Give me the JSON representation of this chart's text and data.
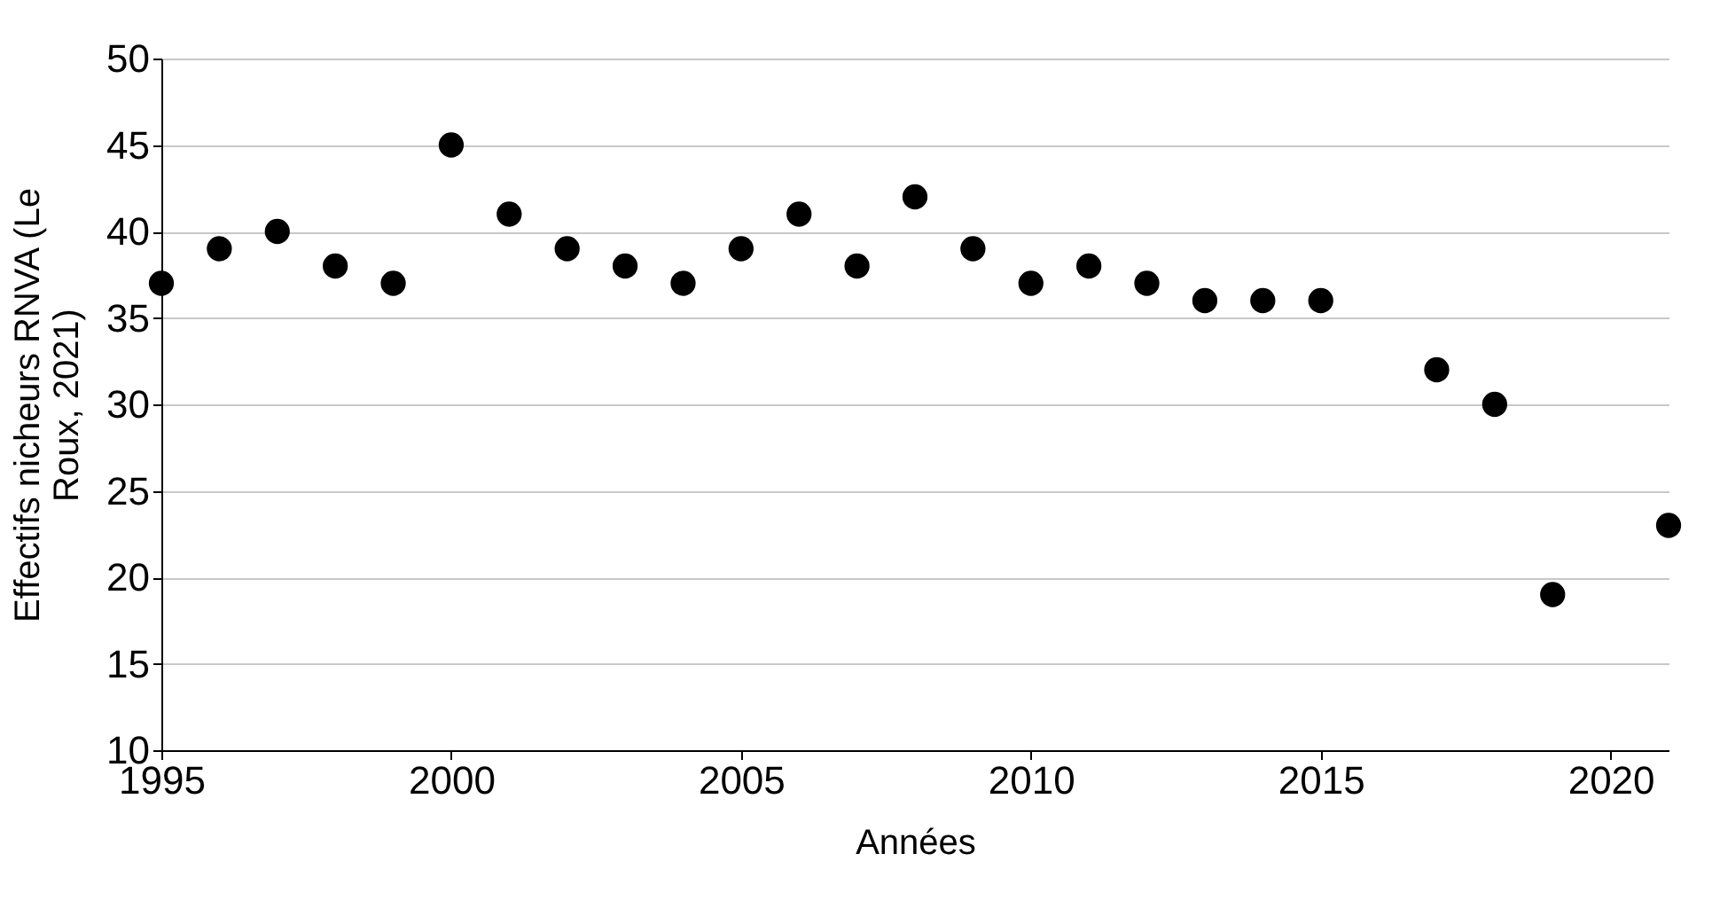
{
  "chart_data": {
    "type": "scatter",
    "xlabel": "Années",
    "ylabel": "Effectifs nicheurs RNVA (Le Roux, 2021)",
    "x": [
      1995,
      1996,
      1997,
      1998,
      1999,
      2000,
      2001,
      2002,
      2003,
      2004,
      2005,
      2006,
      2007,
      2008,
      2009,
      2010,
      2011,
      2012,
      2013,
      2014,
      2015,
      2017,
      2018,
      2019,
      2021
    ],
    "series": [
      {
        "color": "#000000",
        "values": [
          37,
          39,
          40,
          38,
          37,
          45,
          41,
          39,
          38,
          37,
          39,
          41,
          38,
          42,
          39,
          37,
          38,
          37,
          36,
          36,
          36,
          32,
          30,
          19,
          23
        ]
      }
    ],
    "xlim": [
      1995,
      2021
    ],
    "xticks": [
      1995,
      2000,
      2005,
      2010,
      2015,
      2020
    ],
    "ylim": [
      10,
      50
    ],
    "yticks": [
      10,
      15,
      20,
      25,
      30,
      35,
      40,
      45,
      50
    ],
    "grid": "y",
    "marker": "circle",
    "legend": false
  }
}
